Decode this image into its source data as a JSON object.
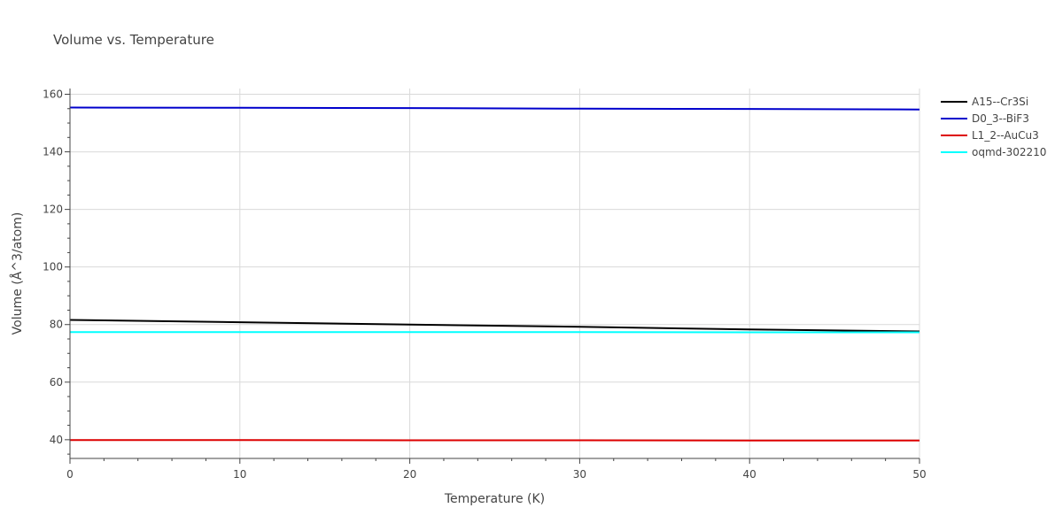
{
  "chart_data": {
    "type": "line",
    "title": "Volume vs. Temperature",
    "xlabel": "Temperature (K)",
    "ylabel": "Volume (Å^3/atom)",
    "xlim": [
      0,
      50
    ],
    "ylim": [
      33.5,
      162
    ],
    "x_ticks": [
      0,
      10,
      20,
      30,
      40,
      50
    ],
    "y_ticks": [
      40,
      60,
      80,
      100,
      120,
      140,
      160
    ],
    "grid": true,
    "legend_position": "top-right",
    "series": [
      {
        "name": "A15--Cr3Si",
        "color": "#000000",
        "x": [
          0,
          10,
          20,
          30,
          40,
          50
        ],
        "y": [
          81.6,
          80.8,
          80.0,
          79.2,
          78.3,
          77.6
        ]
      },
      {
        "name": "D0_3--BiF3",
        "color": "#0000cc",
        "x": [
          0,
          10,
          20,
          30,
          40,
          50
        ],
        "y": [
          155.4,
          155.3,
          155.2,
          155.0,
          154.9,
          154.7
        ]
      },
      {
        "name": "L1_2--AuCu3",
        "color": "#dd0000",
        "x": [
          0,
          10,
          20,
          30,
          40,
          50
        ],
        "y": [
          39.9,
          39.9,
          39.8,
          39.8,
          39.7,
          39.7
        ]
      },
      {
        "name": "oqmd-302210",
        "color": "#00ffff",
        "x": [
          0,
          10,
          20,
          30,
          40,
          50
        ],
        "y": [
          77.4,
          77.4,
          77.4,
          77.4,
          77.3,
          77.3
        ]
      }
    ]
  }
}
